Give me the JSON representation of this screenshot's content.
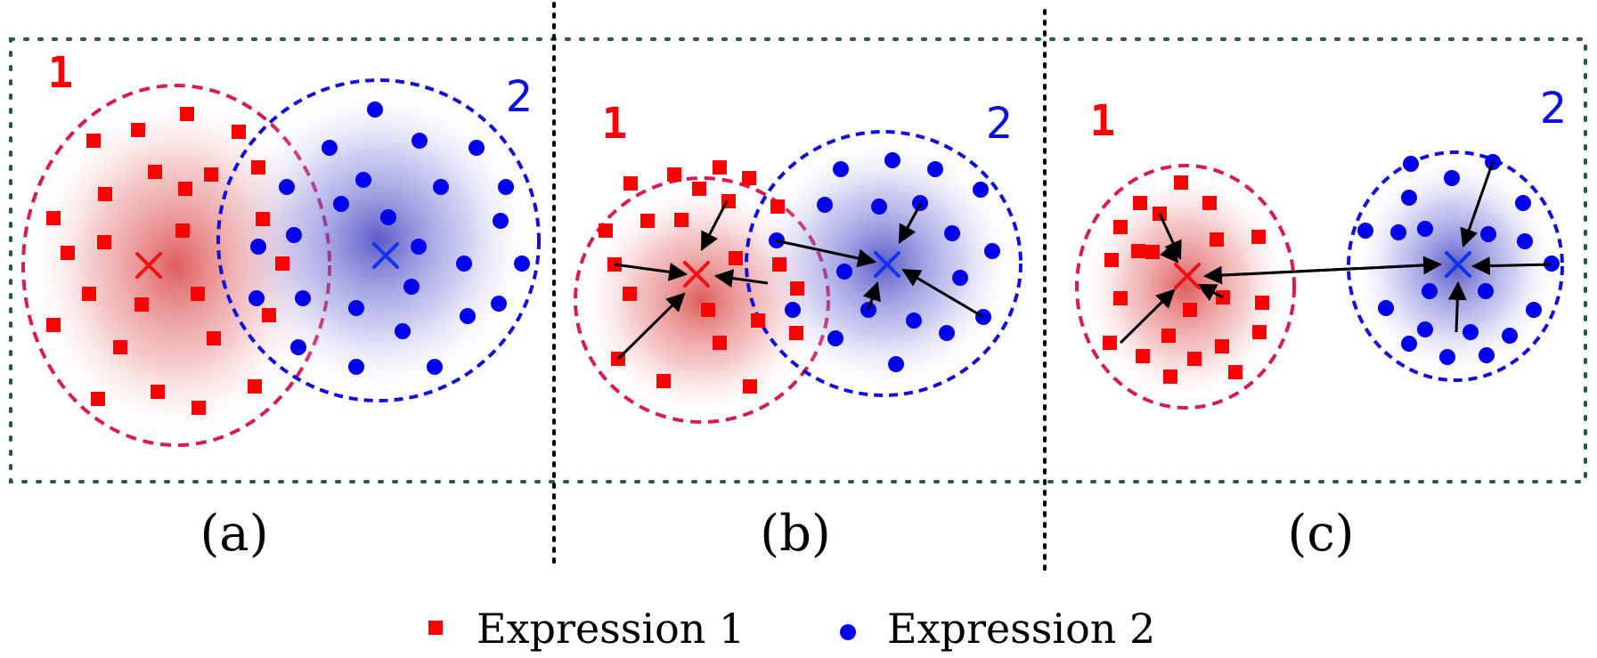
{
  "panels": [
    {
      "id": "a",
      "caption": "(a)",
      "cluster1_label": "1",
      "cluster2_label": "2"
    },
    {
      "id": "b",
      "caption": "(b)",
      "cluster1_label": "1",
      "cluster2_label": "2"
    },
    {
      "id": "c",
      "caption": "(c)",
      "cluster1_label": "1",
      "cluster2_label": "2"
    }
  ],
  "legend": {
    "items": [
      {
        "label": "Expression 1",
        "marker": "square",
        "color": "#ff0000"
      },
      {
        "label": "Expression 2",
        "marker": "circle",
        "color": "#0000ee"
      }
    ]
  },
  "colors": {
    "class1": "#ff0000",
    "class2": "#0000ee",
    "centroid1": "#ee1111",
    "centroid2": "#1133ee",
    "cluster1_border": "#d81b50",
    "cluster2_border": "#1010dd",
    "cluster1_label": "#ff0000",
    "cluster2_label": "#1010dd",
    "frame_border": "#1f5a4a",
    "separator": "#000000",
    "arrow": "#000000"
  }
}
